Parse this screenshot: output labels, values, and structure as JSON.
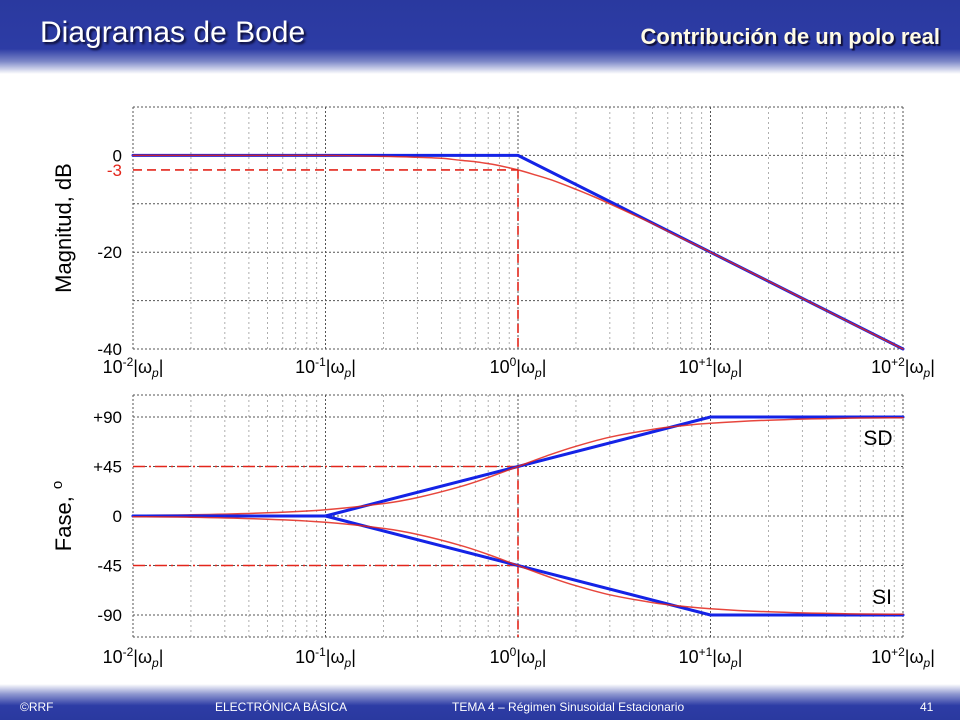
{
  "header": {
    "title": "Diagramas de Bode",
    "subtitle": "Contribución de un polo real"
  },
  "footer": {
    "copyright": "©RRF",
    "course": "ELECTRÓNICA BÁSICA",
    "topic": "TEMA 4 – Régimen Sinusoidal Estacionario",
    "page": "41"
  },
  "colors": {
    "band_blue": "#2a399f",
    "title_text": "#ffffff",
    "subtitle_text": "#fffbe6",
    "asymptote_blue": "#1423e6",
    "exact_red": "#e3261b",
    "grid_gray": "#777777"
  },
  "chart_data": [
    {
      "type": "line",
      "ylabel": "Magnitud, dB",
      "xscale": "log",
      "xlim": [
        0.01,
        100
      ],
      "ylim": [
        -40,
        10
      ],
      "grid": true,
      "x_ticks": [
        {
          "value": 0.01,
          "base": "10",
          "exponent": "-2"
        },
        {
          "value": 0.1,
          "base": "10",
          "exponent": "-1"
        },
        {
          "value": 1,
          "base": "10",
          "exponent": "0"
        },
        {
          "value": 10,
          "base": "10",
          "exponent": "+1"
        },
        {
          "value": 100,
          "base": "10",
          "exponent": "+2"
        }
      ],
      "x_tick_unit": {
        "open": "|",
        "symbol": "ω",
        "subscript": "p",
        "close": "|"
      },
      "y_ticks": [
        {
          "value": 0,
          "label": "0",
          "color": "#000000"
        },
        {
          "value": -3,
          "label": "-3",
          "color": "#e3261b"
        },
        {
          "value": -20,
          "label": "-20",
          "color": "#000000"
        },
        {
          "value": -40,
          "label": "-40",
          "color": "#000000"
        }
      ],
      "y_gridlines": [
        10,
        0,
        -10,
        -20,
        -30,
        -40
      ],
      "reference_lines": [
        {
          "orientation": "horizontal",
          "value": -3,
          "from": 0.01,
          "to": 1,
          "style": "dashed",
          "color": "#e3261b"
        },
        {
          "orientation": "vertical",
          "value": 1,
          "from": -3,
          "to": -40,
          "style": "dashed",
          "color": "#e3261b"
        }
      ],
      "series": [
        {
          "line": "thick",
          "curve": "straight",
          "color": "#1423e6",
          "x": [
            0.01,
            1,
            100
          ],
          "y": [
            0,
            0,
            -40
          ]
        },
        {
          "line": "thin",
          "curve": "smooth",
          "color": "#e3261b",
          "x": [
            0.01,
            0.02,
            0.05,
            0.1,
            0.2,
            0.3,
            0.4,
            0.5,
            0.6,
            0.7,
            0.8,
            1,
            1.2,
            1.5,
            2,
            2.5,
            3,
            4,
            5,
            7,
            10,
            20,
            50,
            100
          ],
          "y": [
            0,
            0,
            0,
            0,
            -0.2,
            -0.4,
            -0.6,
            -1.0,
            -1.3,
            -1.7,
            -2.1,
            -3.0,
            -3.9,
            -5.1,
            -7.0,
            -8.6,
            -10.0,
            -12.3,
            -14.1,
            -17.0,
            -20.0,
            -26.0,
            -34.0,
            -40.0
          ]
        }
      ]
    },
    {
      "type": "line",
      "ylabel": "Fase,",
      "ylabel_superscript": "o",
      "xscale": "log",
      "xlim": [
        0.01,
        100
      ],
      "ylim": [
        -110,
        110
      ],
      "grid": true,
      "x_ticks": [
        {
          "value": 0.01,
          "base": "10",
          "exponent": "-2"
        },
        {
          "value": 0.1,
          "base": "10",
          "exponent": "-1"
        },
        {
          "value": 1,
          "base": "10",
          "exponent": "0"
        },
        {
          "value": 10,
          "base": "10",
          "exponent": "+1"
        },
        {
          "value": 100,
          "base": "10",
          "exponent": "+2"
        }
      ],
      "x_tick_unit": {
        "open": "|",
        "symbol": "ω",
        "subscript": "p",
        "close": "|"
      },
      "y_ticks": [
        {
          "value": 90,
          "label": "+90",
          "color": "#000000"
        },
        {
          "value": 45,
          "label": "+45",
          "color": "#000000"
        },
        {
          "value": 0,
          "label": "0",
          "color": "#000000"
        },
        {
          "value": -45,
          "label": "-45",
          "color": "#000000"
        },
        {
          "value": -90,
          "label": "-90",
          "color": "#000000"
        }
      ],
      "y_gridlines": [
        110,
        90,
        45,
        0,
        -45,
        -90,
        -110
      ],
      "reference_lines": [
        {
          "orientation": "horizontal",
          "value": 45,
          "from": 0.01,
          "to": 1,
          "style": "dashdot",
          "color": "#e3261b"
        },
        {
          "orientation": "horizontal",
          "value": -45,
          "from": 0.01,
          "to": 1,
          "style": "dashdot",
          "color": "#e3261b"
        },
        {
          "orientation": "vertical",
          "value": 1,
          "from": 45,
          "to": -110,
          "style": "dashed",
          "color": "#e3261b"
        }
      ],
      "series": [
        {
          "name": "SD",
          "line": "thick",
          "curve": "straight",
          "color": "#1423e6",
          "x": [
            0.01,
            0.1,
            10,
            100
          ],
          "y": [
            0,
            0,
            90,
            90
          ]
        },
        {
          "name": "SD",
          "line": "thin",
          "curve": "smooth",
          "color": "#e3261b",
          "x": [
            0.01,
            0.02,
            0.05,
            0.1,
            0.2,
            0.3,
            0.5,
            0.7,
            1,
            1.5,
            2,
            3,
            5,
            7,
            10,
            20,
            50,
            100
          ],
          "y": [
            0.6,
            1.1,
            2.9,
            5.7,
            11.3,
            16.7,
            26.6,
            35.0,
            45.0,
            56.3,
            63.4,
            71.6,
            78.7,
            81.9,
            84.3,
            87.1,
            88.9,
            89.4
          ]
        },
        {
          "name": "SI",
          "line": "thick",
          "curve": "straight",
          "color": "#1423e6",
          "x": [
            0.01,
            0.1,
            10,
            100
          ],
          "y": [
            0,
            0,
            -90,
            -90
          ]
        },
        {
          "name": "SI",
          "line": "thin",
          "curve": "smooth",
          "color": "#e3261b",
          "x": [
            0.01,
            0.02,
            0.05,
            0.1,
            0.2,
            0.3,
            0.5,
            0.7,
            1,
            1.5,
            2,
            3,
            5,
            7,
            10,
            20,
            50,
            100
          ],
          "y": [
            -0.6,
            -1.1,
            -2.9,
            -5.7,
            -11.3,
            -16.7,
            -26.6,
            -35.0,
            -45.0,
            -56.3,
            -63.4,
            -71.6,
            -78.7,
            -81.9,
            -84.3,
            -87.1,
            -88.9,
            -89.4
          ]
        }
      ],
      "annotations": [
        "SD",
        "SI"
      ]
    }
  ]
}
